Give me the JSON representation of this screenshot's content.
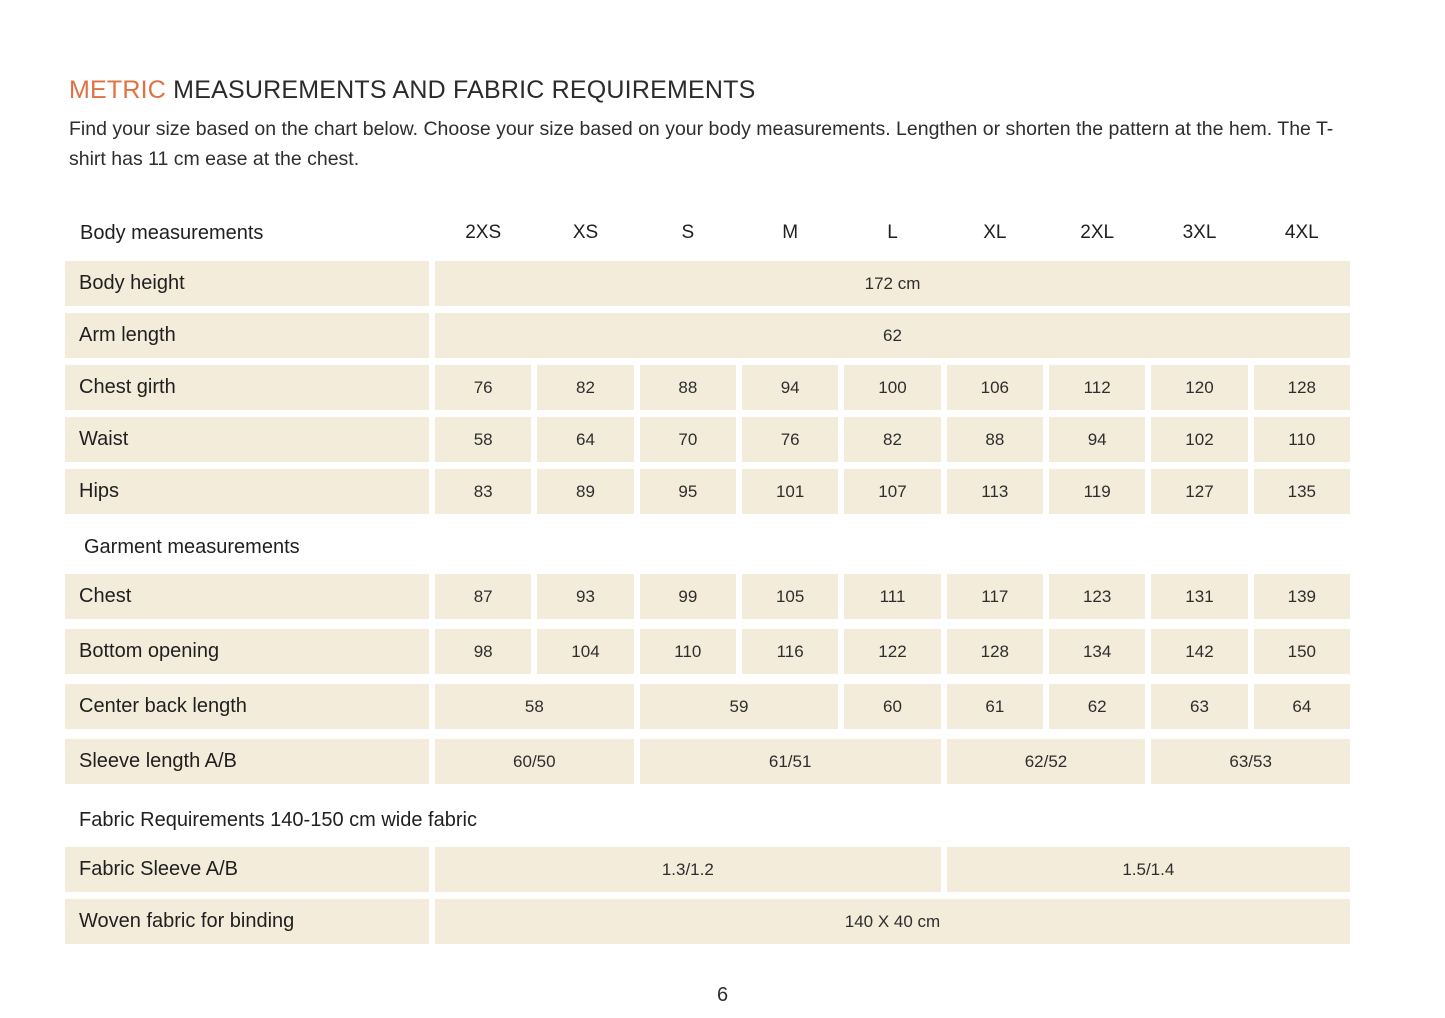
{
  "colors": {
    "accent": "#E07142",
    "cell_background": "#F3ECDB",
    "text": "#2b2b2b"
  },
  "title": {
    "highlight": "METRIC",
    "rest": " MEASUREMENTS AND FABRIC REQUIREMENTS"
  },
  "intro": "Find your size based on the chart below. Choose your size based on your body measurements.  Lengthen or shorten the pattern at the hem. The T-shirt has 11 cm ease at the chest.",
  "table": {
    "header_label": "Body measurements",
    "sizes": [
      "2XS",
      "XS",
      "S",
      "M",
      "L",
      "XL",
      "2XL",
      "3XL",
      "4XL"
    ],
    "rows": {
      "body_height": {
        "label": "Body height",
        "all": "172 cm"
      },
      "arm_length": {
        "label": "Arm length",
        "all": "62"
      },
      "chest_girth": {
        "label": "Chest girth",
        "values": [
          "76",
          "82",
          "88",
          "94",
          "100",
          "106",
          "112",
          "120",
          "128"
        ]
      },
      "waist": {
        "label": "Waist",
        "values": [
          "58",
          "64",
          "70",
          "76",
          "82",
          "88",
          "94",
          "102",
          "110"
        ]
      },
      "hips": {
        "label": "Hips",
        "values": [
          "83",
          "89",
          "95",
          "101",
          "107",
          "113",
          "119",
          "127",
          "135"
        ]
      },
      "garment_heading": "Garment measurements",
      "chest": {
        "label": "Chest",
        "values": [
          "87",
          "93",
          "99",
          "105",
          "111",
          "117",
          "123",
          "131",
          "139"
        ]
      },
      "bottom_opening": {
        "label": "Bottom opening",
        "values": [
          "98",
          "104",
          "110",
          "116",
          "122",
          "128",
          "134",
          "142",
          "150"
        ]
      },
      "center_back_length": {
        "label": "Center back length",
        "values": [
          "58",
          "59",
          "60",
          "61",
          "62",
          "63",
          "64"
        ]
      },
      "sleeve_length": {
        "label": "Sleeve length A/B",
        "values": [
          "60/50",
          "61/51",
          "62/52",
          "63/53"
        ]
      },
      "fabric_heading": "Fabric Requirements 140-150 cm wide fabric",
      "fabric_sleeve": {
        "label": "Fabric Sleeve A/B",
        "values": [
          "1.3/1.2",
          "1.5/1.4"
        ]
      },
      "woven_fabric": {
        "label": "Woven fabric for binding",
        "all": "140 X 40 cm"
      }
    }
  },
  "page": {
    "number": "6"
  }
}
